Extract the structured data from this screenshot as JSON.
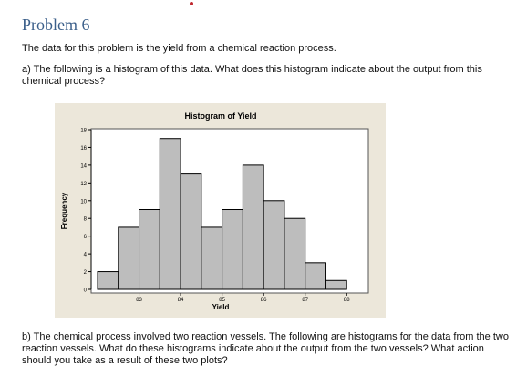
{
  "page": {
    "heading": "Problem 6",
    "intro": "The data for this problem is the yield from a chemical reaction process.",
    "question_a": "a)  The following is a histogram of this data.  What does this histogram indicate about the output from this chemical process?",
    "question_b": "b)  The chemical process involved two reaction vessels.  The following are histograms for the data from the two reaction vessels.  What do these histograms indicate about the output from the two vessels?  What action should you take as a result of these two plots?"
  },
  "chart_data": {
    "type": "bar",
    "title": "Histogram of Yield",
    "xlabel": "Yield",
    "ylabel": "Frequency",
    "bin_width": 0.5,
    "bin_starts": [
      82.0,
      82.5,
      83.0,
      83.5,
      84.0,
      84.5,
      85.0,
      85.5,
      86.0,
      86.5,
      87.0,
      87.5,
      88.0
    ],
    "values": [
      2,
      7,
      9,
      17,
      13,
      7,
      9,
      14,
      10,
      8,
      3,
      1
    ],
    "counts": [
      2,
      7,
      9,
      17,
      13,
      7,
      9,
      14,
      10,
      8,
      3,
      1
    ],
    "x_ticks": [
      "83",
      "84",
      "85",
      "86",
      "87",
      "88"
    ],
    "x_tick_values": [
      83,
      84,
      85,
      86,
      87,
      88
    ],
    "y_ticks": [
      "0",
      "2",
      "4",
      "6",
      "8",
      "10",
      "12",
      "14",
      "16",
      "18"
    ],
    "ylim": [
      0,
      18
    ],
    "xlim": [
      82,
      88.5
    ],
    "grid": false,
    "colors": {
      "outer_background": "#ece7da",
      "plot_background": "#ffffff",
      "bar_fill": "#bdbdbd",
      "bar_stroke": "#000000"
    }
  }
}
